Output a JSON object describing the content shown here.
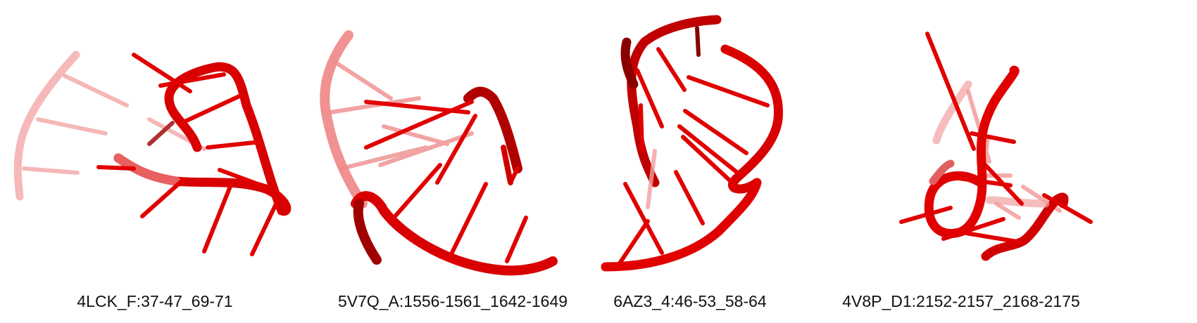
{
  "structures": [
    {
      "label": "4LCK_F:37-47_69-71"
    },
    {
      "label": "5V7Q_A:1556-1561_1642-1649"
    },
    {
      "label": "6AZ3_4:46-53_58-64"
    },
    {
      "label": "4V8P_D1:2152-2157_2168-2175"
    }
  ],
  "colors": {
    "backbone": "#e00000",
    "backbone_dark": "#8a0000",
    "backbone_faded": "#f08080",
    "base": "#e01010",
    "background": "#ffffff"
  }
}
